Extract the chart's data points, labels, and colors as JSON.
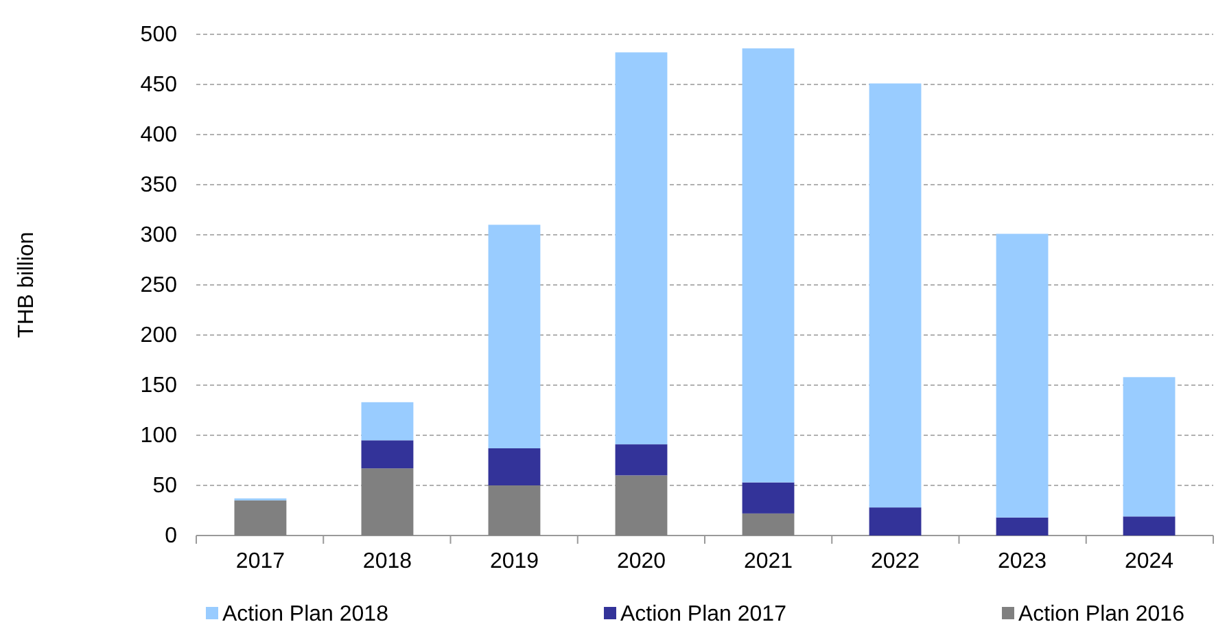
{
  "chart_data": {
    "type": "bar",
    "stacked": true,
    "ylabel": "THB billion",
    "categories": [
      "2017",
      "2018",
      "2019",
      "2020",
      "2021",
      "2022",
      "2023",
      "2024"
    ],
    "series": [
      {
        "name": "Action Plan 2016",
        "color": "#808080",
        "values": [
          35,
          67,
          50,
          60,
          22,
          0,
          0,
          0
        ]
      },
      {
        "name": "Action Plan 2017",
        "color": "#333399",
        "values": [
          0,
          28,
          37,
          31,
          31,
          28,
          18,
          19
        ]
      },
      {
        "name": "Action Plan 2018",
        "color": "#99ccff",
        "values": [
          2,
          38,
          223,
          391,
          433,
          423,
          283,
          139
        ]
      }
    ],
    "ylim": [
      0,
      500
    ],
    "yticks": [
      0,
      50,
      100,
      150,
      200,
      250,
      300,
      350,
      400,
      450,
      500
    ],
    "grid": "y",
    "legend": "bottom"
  }
}
